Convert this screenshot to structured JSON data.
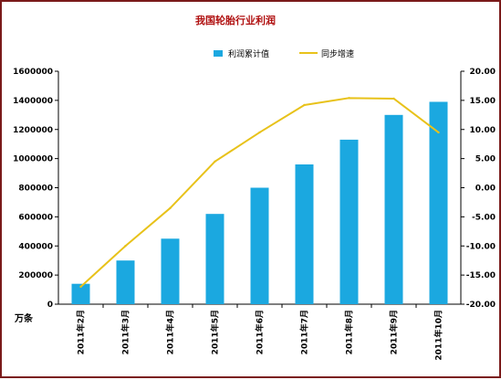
{
  "chart_data": {
    "type": "bar",
    "title": "我国轮胎行业利润",
    "y_unit": "万条",
    "categories": [
      "2011年2月",
      "2011年3月",
      "2011年4月",
      "2011年5月",
      "2011年6月",
      "2011年7月",
      "2011年8月",
      "2011年9月",
      "2011年10月"
    ],
    "series": [
      {
        "name": "利润累计值",
        "kind": "bar",
        "axis": "left",
        "color": "#1ba8e0",
        "values": [
          140000,
          300000,
          450000,
          620000,
          800000,
          960000,
          1130000,
          1300000,
          1390000
        ]
      },
      {
        "name": "同步增速",
        "kind": "line",
        "axis": "right",
        "color": "#e8c21a",
        "values": [
          -17.0,
          -10.0,
          -3.5,
          4.5,
          9.5,
          14.2,
          15.4,
          15.3,
          9.5
        ]
      }
    ],
    "y_left": {
      "lim": [
        0,
        1600000
      ],
      "ticks": [
        "0",
        "200000",
        "400000",
        "600000",
        "800000",
        "1000000",
        "1200000",
        "1400000",
        "1600000"
      ]
    },
    "y_right": {
      "lim": [
        -20,
        20
      ],
      "ticks": [
        "-20.00",
        "-15.00",
        "-10.00",
        "-5.00",
        "0.00",
        "5.00",
        "10.00",
        "15.00",
        "20.00"
      ]
    },
    "grid": false,
    "legend_position": "top-center"
  }
}
